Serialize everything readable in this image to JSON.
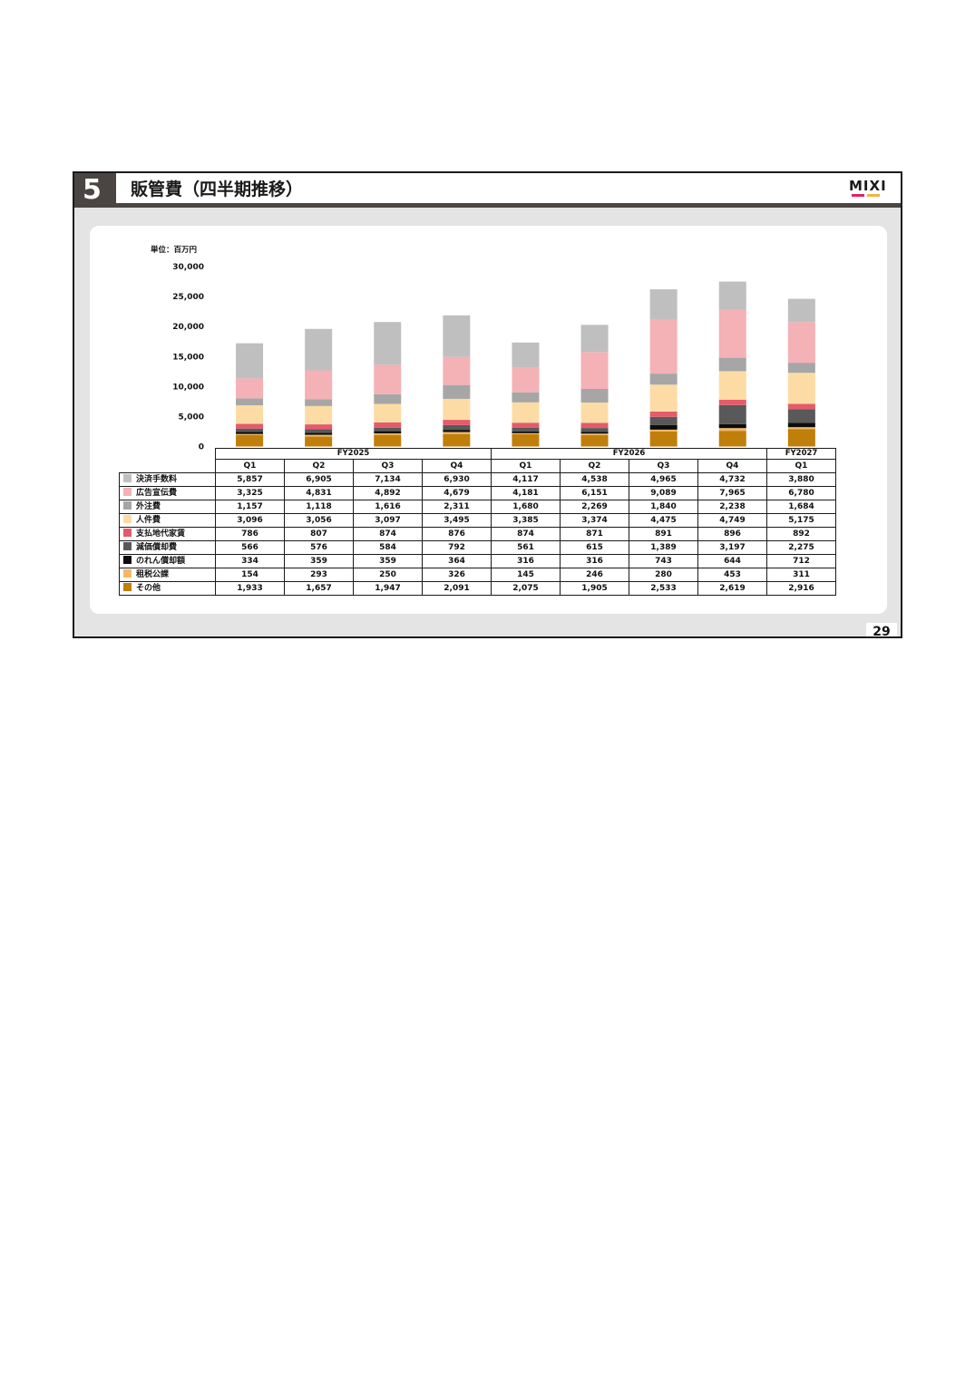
{
  "slide": {
    "section_number": "5",
    "title": "販管費（四半期推移）",
    "logo_text": "MIXI",
    "logo_colors": [
      "#e0245e",
      "#f2b43b"
    ],
    "page_number": "29",
    "colors": {
      "title_band": "#4a4542",
      "outer_background": "#e4e4e4",
      "panel": "#ffffff"
    }
  },
  "chart_data": {
    "type": "bar",
    "stacked": true,
    "unit_label": "単位：百万円",
    "ylim": [
      0,
      30000
    ],
    "yticks": [
      0,
      5000,
      10000,
      15000,
      20000,
      25000,
      30000
    ],
    "ytick_labels": [
      "0",
      "5,000",
      "10,000",
      "15,000",
      "20,000",
      "25,000",
      "30,000"
    ],
    "fiscal_years": [
      {
        "label": "FY2025",
        "span": 4
      },
      {
        "label": "FY2026",
        "span": 4
      },
      {
        "label": "FY2027",
        "span": 1
      }
    ],
    "categories": [
      "Q1",
      "Q2",
      "Q3",
      "Q4",
      "Q1",
      "Q2",
      "Q3",
      "Q4",
      "Q1"
    ],
    "series_stack_order": [
      "その他",
      "租税公課",
      "のれん償却額",
      "減価償却費",
      "支払地代家賃",
      "人件費",
      "外注費",
      "広告宣伝費",
      "決済手数料"
    ],
    "series": [
      {
        "name": "決済手数料",
        "color": "#bfbfbf",
        "values": [
          5857,
          6905,
          7134,
          6930,
          4117,
          4538,
          4965,
          4732,
          3880
        ],
        "labels": [
          "5,857",
          "6,905",
          "7,134",
          "6,930",
          "4,117",
          "4,538",
          "4,965",
          "4,732",
          "3,880"
        ]
      },
      {
        "name": "広告宣伝費",
        "color": "#f4b1b6",
        "values": [
          3325,
          4831,
          4892,
          4679,
          4181,
          6151,
          9089,
          7965,
          6780
        ],
        "labels": [
          "3,325",
          "4,831",
          "4,892",
          "4,679",
          "4,181",
          "6,151",
          "9,089",
          "7,965",
          "6,780"
        ]
      },
      {
        "name": "外注費",
        "color": "#a6a6a6",
        "values": [
          1157,
          1118,
          1616,
          2311,
          1680,
          2269,
          1840,
          2238,
          1684
        ],
        "labels": [
          "1,157",
          "1,118",
          "1,616",
          "2,311",
          "1,680",
          "2,269",
          "1,840",
          "2,238",
          "1,684"
        ]
      },
      {
        "name": "人件費",
        "color": "#fcdca4",
        "values": [
          3096,
          3056,
          3097,
          3495,
          3385,
          3374,
          4475,
          4749,
          5175
        ],
        "labels": [
          "3,096",
          "3,056",
          "3,097",
          "3,495",
          "3,385",
          "3,374",
          "4,475",
          "4,749",
          "5,175"
        ]
      },
      {
        "name": "支払地代家賃",
        "color": "#e45b6b",
        "values": [
          786,
          807,
          874,
          876,
          874,
          871,
          891,
          896,
          892
        ],
        "labels": [
          "786",
          "807",
          "874",
          "876",
          "874",
          "871",
          "891",
          "896",
          "892"
        ]
      },
      {
        "name": "減価償却費",
        "color": "#595959",
        "values": [
          566,
          576,
          584,
          792,
          561,
          615,
          1389,
          3197,
          2275
        ],
        "labels": [
          "566",
          "576",
          "584",
          "792",
          "561",
          "615",
          "1,389",
          "3,197",
          "2,275"
        ]
      },
      {
        "name": "のれん償却額",
        "color": "#0d0d0d",
        "values": [
          334,
          359,
          359,
          364,
          316,
          316,
          743,
          644,
          712
        ],
        "labels": [
          "334",
          "359",
          "359",
          "364",
          "316",
          "316",
          "743",
          "644",
          "712"
        ]
      },
      {
        "name": "租税公課",
        "color": "#f4b86a",
        "values": [
          154,
          293,
          250,
          326,
          145,
          246,
          280,
          453,
          311
        ],
        "labels": [
          "154",
          "293",
          "250",
          "326",
          "145",
          "246",
          "280",
          "453",
          "311"
        ]
      },
      {
        "name": "その他",
        "color": "#bf7f0a",
        "values": [
          1933,
          1657,
          1947,
          2091,
          2075,
          1905,
          2533,
          2619,
          2916
        ],
        "labels": [
          "1,933",
          "1,657",
          "1,947",
          "2,091",
          "2,075",
          "1,905",
          "2,533",
          "2,619",
          "2,916"
        ]
      }
    ],
    "grid": false,
    "legend": "table-left"
  }
}
